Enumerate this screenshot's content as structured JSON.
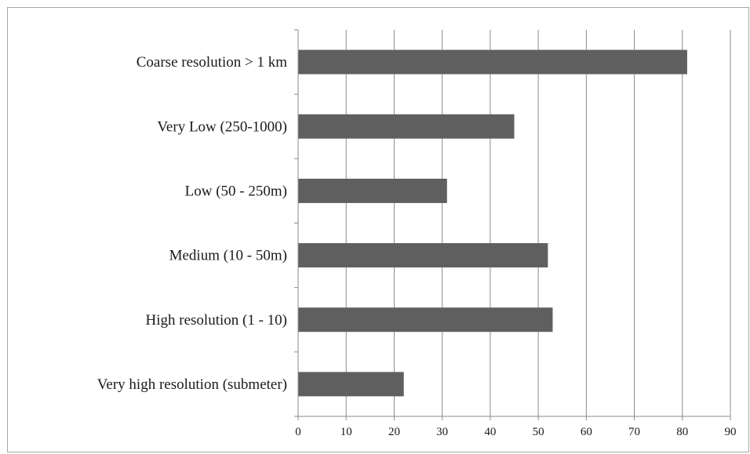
{
  "chart_data": {
    "type": "bar",
    "orientation": "horizontal",
    "categories": [
      "Coarse resolution > 1 km",
      "Very Low (250-1000)",
      "Low (50 - 250m)",
      "Medium (10 - 50m)",
      "High resolution (1 - 10)",
      "Very high resolution (submeter)"
    ],
    "values": [
      81,
      45,
      31,
      52,
      53,
      22
    ],
    "xlim": [
      0,
      90
    ],
    "xticks": [
      0,
      10,
      20,
      30,
      40,
      50,
      60,
      70,
      80,
      90
    ],
    "title": "",
    "xlabel": "",
    "ylabel": "",
    "grid": "vertical",
    "legend": "none",
    "colors": {
      "bar": "#5f5f5f",
      "grid": "#8c8c8c",
      "axis": "#8c8c8c",
      "text": "#1a1a1a"
    }
  }
}
